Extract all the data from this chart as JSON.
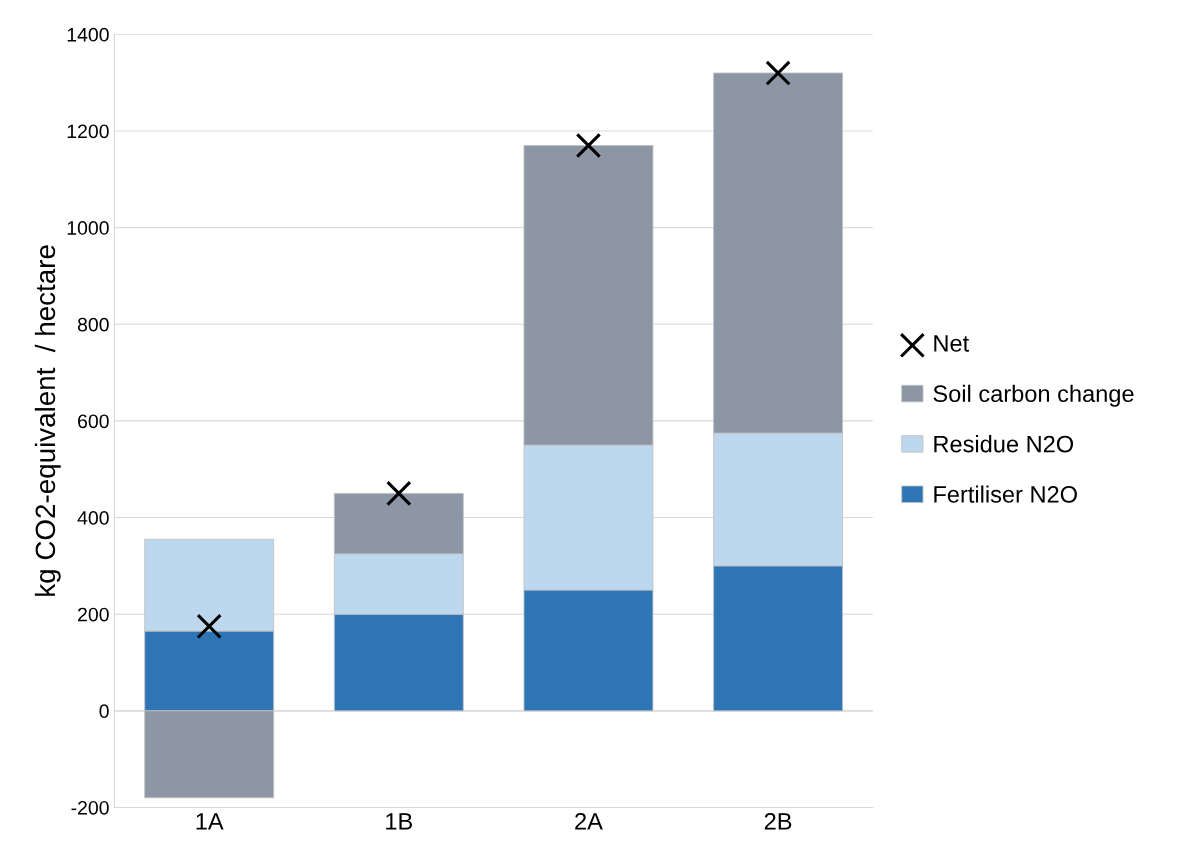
{
  "chart_data": {
    "type": "bar",
    "stacked": true,
    "ylabel": "kg CO2-equivalent  / hectare",
    "categories": [
      "1A",
      "1B",
      "2A",
      "2B"
    ],
    "series": [
      {
        "name": "Fertiliser N2O",
        "color": "#2e75b6",
        "values": [
          165,
          200,
          250,
          300
        ]
      },
      {
        "name": "Residue N2O",
        "color": "#bdd7ee",
        "values": [
          190,
          125,
          300,
          275
        ]
      },
      {
        "name": "Soil carbon change",
        "color": "#8c96a5",
        "values": [
          -180,
          125,
          620,
          745
        ]
      },
      {
        "name": "Net",
        "type": "scatter",
        "color": "#000000",
        "marker": "cross",
        "x": [
          "1A",
          "1B",
          "2A",
          "2B"
        ],
        "values": [
          175,
          450,
          1170,
          1320
        ]
      }
    ],
    "ylim": [
      -200,
      1400
    ],
    "yticks": [
      -200,
      0,
      200,
      400,
      600,
      800,
      1000,
      1200,
      1400
    ],
    "grid": "y",
    "legend": "right"
  }
}
